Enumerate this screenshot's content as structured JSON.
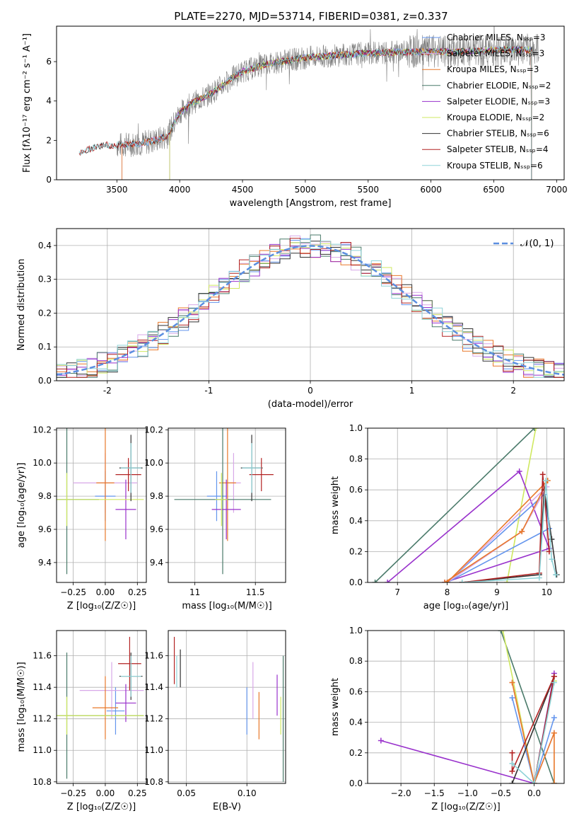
{
  "figure_title": "PLATE=2270, MJD=53714, FIBERID=0381, z=0.337",
  "colors": {
    "chabrier_miles": "#6495ed",
    "salpeter_miles": "#d8a8e8",
    "kroupa_miles": "#e8782a",
    "chabrier_elodie": "#4a7a6a",
    "salpeter_elodie": "#9932cc",
    "kroupa_elodie": "#cfe860",
    "chabrier_stelib": "#333333",
    "salpeter_stelib": "#b22222",
    "kroupa_stelib": "#8fd3d8",
    "data": "#808080",
    "normal_curve": "#5b8ee0",
    "grid": "#b0b0b0"
  },
  "chart_data": [
    {
      "id": "spectrum",
      "type": "line",
      "title": "PLATE=2270, MJD=53714, FIBERID=0381, z=0.337",
      "xlabel": "wavelength [Angstrom, rest frame]",
      "ylabel": "Flux [fλ10⁻¹⁷ erg cm⁻² s⁻¹ A⁻¹]",
      "xlim": [
        3020,
        7060
      ],
      "ylim": [
        0,
        7.8
      ],
      "xticks": [
        3500,
        4000,
        4500,
        5000,
        5500,
        6000,
        6500,
        7000
      ],
      "yticks": [
        0,
        2,
        4,
        6
      ],
      "grid": false,
      "legend_position": "right",
      "continuum": {
        "x": [
          3200,
          3300,
          3400,
          3500,
          3600,
          3700,
          3800,
          3900,
          4000,
          4100,
          4200,
          4300,
          4400,
          4500,
          4600,
          4700,
          4800,
          4900,
          5000,
          5200,
          5400,
          5600,
          5800,
          6000,
          6200,
          6400,
          6600,
          6800,
          6900
        ],
        "y": [
          1.4,
          1.6,
          1.75,
          1.75,
          1.8,
          1.85,
          2.0,
          2.2,
          3.4,
          3.9,
          4.2,
          4.6,
          5.1,
          5.5,
          5.7,
          5.9,
          6.0,
          6.1,
          6.2,
          6.3,
          6.4,
          6.45,
          6.5,
          6.5,
          6.5,
          6.55,
          6.6,
          6.6,
          6.6
        ]
      },
      "series": [
        {
          "name": "Chabrier MILES, Nₛₛₚ=3",
          "color_key": "chabrier_miles",
          "x_range": [
            3540,
            6800
          ]
        },
        {
          "name": "Salpeter MILES, Nₛₛₚ=3",
          "color_key": "salpeter_miles",
          "x_range": [
            3540,
            6800
          ]
        },
        {
          "name": "Kroupa MILES, Nₛₛₚ=3",
          "color_key": "kroupa_miles",
          "x_range": [
            3540,
            6800
          ]
        },
        {
          "name": "Chabrier ELODIE, Nₛₛₚ=2",
          "color_key": "chabrier_elodie",
          "x_range": [
            3920,
            6800
          ]
        },
        {
          "name": "Salpeter ELODIE, Nₛₛₚ=3",
          "color_key": "salpeter_elodie",
          "x_range": [
            3920,
            6800
          ]
        },
        {
          "name": "Kroupa ELODIE, Nₛₛₚ=2",
          "color_key": "kroupa_elodie",
          "x_range": [
            3920,
            6800
          ]
        },
        {
          "name": "Chabrier STELIB, Nₛₛₚ=6",
          "color_key": "chabrier_stelib",
          "x_range": [
            3200,
            6800
          ]
        },
        {
          "name": "Salpeter STELIB, Nₛₛₚ=4",
          "color_key": "salpeter_stelib",
          "x_range": [
            3200,
            6800
          ]
        },
        {
          "name": "Kroupa STELIB, Nₛₛₚ=6",
          "color_key": "kroupa_stelib",
          "x_range": [
            3200,
            6800
          ]
        }
      ],
      "data_series": {
        "color_key": "data",
        "x_range": [
          3500,
          6860
        ]
      }
    },
    {
      "id": "residuals",
      "type": "histogram",
      "xlabel": "(data-model)/error",
      "ylabel": "Normed distribution",
      "xlim": [
        -2.5,
        2.5
      ],
      "ylim": [
        0,
        0.45
      ],
      "xticks": [
        -2,
        -1,
        0,
        1,
        2
      ],
      "yticks": [
        0.0,
        0.1,
        0.2,
        0.3,
        0.4
      ],
      "grid": true,
      "bin_width": 0.1,
      "legend": "𝒩(0, 1)",
      "legend_position": "top-right"
    },
    {
      "id": "age_vs_Z",
      "type": "errorbar",
      "xlabel": "Z [log₁₀(Z/Z☉)]",
      "ylabel": "age  [log₁₀(age/yr)]",
      "xlim": [
        -0.38,
        0.32
      ],
      "ylim": [
        9.28,
        10.21
      ],
      "xticks": [
        -0.25,
        0.0,
        0.25
      ],
      "xticklabels": [
        "−0.25",
        "0.00",
        "0.25"
      ],
      "yticks": [
        9.4,
        9.6,
        9.8,
        10.0,
        10.2
      ],
      "grid": true,
      "points": [
        {
          "color_key": "chabrier_miles",
          "x": 0.0,
          "xerr": 0.08,
          "y": 9.8,
          "yerr": 0.15
        },
        {
          "color_key": "salpeter_miles",
          "x": 0.0,
          "xerr": 0.25,
          "y": 9.88,
          "yerr": 0.18
        },
        {
          "color_key": "kroupa_miles",
          "x": 0.0,
          "xerr": 0.07,
          "y": 9.88,
          "yerr": 0.35
        },
        {
          "color_key": "chabrier_elodie",
          "x": -0.3,
          "xerr": 0.25,
          "y": 9.78,
          "yerr": 0.45
        },
        {
          "color_key": "salpeter_elodie",
          "x": 0.16,
          "xerr": 0.08,
          "y": 9.72,
          "yerr": 0.18
        },
        {
          "color_key": "kroupa_elodie",
          "x": -0.3,
          "xerr": 0.6,
          "y": 9.78,
          "yerr": 0.16
        },
        {
          "color_key": "chabrier_stelib",
          "x": 0.2,
          "xerr": 0.09,
          "y": 9.97,
          "yerr": 0.2
        },
        {
          "color_key": "salpeter_stelib",
          "x": 0.18,
          "xerr": 0.1,
          "y": 9.93,
          "yerr": 0.1
        },
        {
          "color_key": "kroupa_stelib",
          "x": 0.2,
          "xerr": 0.08,
          "y": 9.97,
          "yerr": 0.15
        }
      ]
    },
    {
      "id": "age_vs_mass",
      "type": "errorbar",
      "xlabel": "mass [log₁₀(M/M☉)]",
      "xlim": [
        10.78,
        11.75
      ],
      "ylim": [
        9.28,
        10.21
      ],
      "xticks": [
        11.0,
        11.5
      ],
      "yticks": [
        9.4,
        9.6,
        9.8,
        10.0,
        10.2
      ],
      "grid": true,
      "points": [
        {
          "color_key": "chabrier_miles",
          "x": 11.18,
          "xerr": 0.08,
          "y": 9.8,
          "yerr": 0.15
        },
        {
          "color_key": "salpeter_miles",
          "x": 11.32,
          "xerr": 0.06,
          "y": 9.88,
          "yerr": 0.18
        },
        {
          "color_key": "kroupa_miles",
          "x": 11.27,
          "xerr": 0.07,
          "y": 9.88,
          "yerr": 0.35
        },
        {
          "color_key": "chabrier_elodie",
          "x": 11.23,
          "xerr": 0.4,
          "y": 9.78,
          "yerr": 0.45
        },
        {
          "color_key": "salpeter_elodie",
          "x": 11.26,
          "xerr": 0.12,
          "y": 9.72,
          "yerr": 0.18
        },
        {
          "color_key": "kroupa_elodie",
          "x": 11.22,
          "xerr": 0.05,
          "y": 9.78,
          "yerr": 0.16
        },
        {
          "color_key": "chabrier_stelib",
          "x": 11.47,
          "xerr": 0.09,
          "y": 9.97,
          "yerr": 0.2
        },
        {
          "color_key": "salpeter_stelib",
          "x": 11.55,
          "xerr": 0.1,
          "y": 9.93,
          "yerr": 0.1
        },
        {
          "color_key": "kroupa_stelib",
          "x": 11.47,
          "xerr": 0.08,
          "y": 9.97,
          "yerr": 0.15
        }
      ]
    },
    {
      "id": "massweight_vs_age",
      "type": "line",
      "xlabel": "age  [log₁₀(age/yr)]",
      "ylabel": "mass weight",
      "xlim": [
        6.4,
        10.35
      ],
      "ylim": [
        0,
        1
      ],
      "xticks": [
        7,
        8,
        9,
        10
      ],
      "yticks": [
        0.0,
        0.2,
        0.4,
        0.6,
        0.8,
        1.0
      ],
      "grid": true,
      "series": [
        {
          "color_key": "chabrier_elodie",
          "x": [
            6.55,
            9.75
          ],
          "y": [
            0.0,
            1.0
          ]
        },
        {
          "color_key": "kroupa_elodie",
          "x": [
            9.2,
            9.78
          ],
          "y": [
            0.0,
            1.0
          ]
        },
        {
          "color_key": "salpeter_elodie",
          "x": [
            6.8,
            9.45,
            10.05,
            7.95
          ],
          "y": [
            0.0,
            0.72,
            0.22,
            0.0
          ]
        },
        {
          "color_key": "chabrier_miles",
          "x": [
            8.0,
            9.95,
            10.05,
            8.0
          ],
          "y": [
            0.0,
            0.57,
            0.35,
            0.0
          ]
        },
        {
          "color_key": "salpeter_miles",
          "x": [
            8.0,
            9.5,
            10.0,
            8.0
          ],
          "y": [
            0.0,
            0.33,
            0.62,
            0.0
          ]
        },
        {
          "color_key": "kroupa_miles",
          "x": [
            7.95,
            9.5,
            10.02,
            8.0
          ],
          "y": [
            0.0,
            0.33,
            0.66,
            0.0
          ]
        },
        {
          "color_key": "chabrier_stelib",
          "x": [
            8.3,
            9.85,
            9.95,
            10.1,
            10.2
          ],
          "y": [
            0.0,
            0.05,
            0.6,
            0.28,
            0.05
          ]
        },
        {
          "color_key": "salpeter_stelib",
          "x": [
            8.3,
            9.85,
            9.92,
            10.05
          ],
          "y": [
            0.0,
            0.06,
            0.7,
            0.2
          ]
        },
        {
          "color_key": "kroupa_stelib",
          "x": [
            8.3,
            9.85,
            9.98,
            10.1,
            10.18
          ],
          "y": [
            0.0,
            0.03,
            0.66,
            0.15,
            0.05
          ]
        }
      ]
    },
    {
      "id": "mass_vs_Z",
      "type": "errorbar",
      "xlabel": "Z [log₁₀(Z/Z☉)]",
      "ylabel": "mass [log₁₀(M/M☉)]",
      "xlim": [
        -0.38,
        0.32
      ],
      "ylim": [
        10.79,
        11.76
      ],
      "xticks": [
        -0.25,
        0.0,
        0.25
      ],
      "xticklabels": [
        "−0.25",
        "0.00",
        "0.25"
      ],
      "yticks": [
        10.8,
        11.0,
        11.2,
        11.4,
        11.6
      ],
      "grid": true,
      "points": [
        {
          "color_key": "chabrier_miles",
          "x": 0.08,
          "xerr": 0.07,
          "y": 11.25,
          "yerr": 0.15
        },
        {
          "color_key": "salpeter_miles",
          "x": 0.05,
          "xerr": 0.25,
          "y": 11.38,
          "yerr": 0.18
        },
        {
          "color_key": "kroupa_miles",
          "x": 0.0,
          "xerr": 0.1,
          "y": 11.27,
          "yerr": 0.2
        },
        {
          "color_key": "chabrier_elodie",
          "x": -0.3,
          "xerr": 0.6,
          "y": 11.22,
          "yerr": 0.4
        },
        {
          "color_key": "salpeter_elodie",
          "x": 0.16,
          "xerr": 0.08,
          "y": 11.3,
          "yerr": 0.12
        },
        {
          "color_key": "kroupa_elodie",
          "x": -0.3,
          "xerr": 0.6,
          "y": 11.22,
          "yerr": 0.12
        },
        {
          "color_key": "chabrier_stelib",
          "x": 0.2,
          "xerr": 0.09,
          "y": 11.47,
          "yerr": 0.15
        },
        {
          "color_key": "salpeter_stelib",
          "x": 0.19,
          "xerr": 0.09,
          "y": 11.55,
          "yerr": 0.17
        },
        {
          "color_key": "kroupa_stelib",
          "x": 0.2,
          "xerr": 0.08,
          "y": 11.47,
          "yerr": 0.13
        }
      ]
    },
    {
      "id": "mass_vs_ebv",
      "type": "errorbar",
      "xlabel": "E(B-V)",
      "xlim": [
        0.035,
        0.132
      ],
      "ylim": [
        10.79,
        11.76
      ],
      "xticks": [
        0.05,
        0.1
      ],
      "xticklabels": [
        "0.05",
        "0.10"
      ],
      "yticks": [
        10.8,
        11.0,
        11.2,
        11.4,
        11.6
      ],
      "grid": true,
      "points": [
        {
          "color_key": "chabrier_miles",
          "x": 0.1,
          "y": 11.25,
          "yerr": 0.15
        },
        {
          "color_key": "salpeter_miles",
          "x": 0.105,
          "y": 11.38,
          "yerr": 0.18
        },
        {
          "color_key": "kroupa_miles",
          "x": 0.11,
          "y": 11.22,
          "yerr": 0.15
        },
        {
          "color_key": "chabrier_elodie",
          "x": 0.13,
          "y": 11.2,
          "yerr": 0.4
        },
        {
          "color_key": "salpeter_elodie",
          "x": 0.125,
          "y": 11.35,
          "yerr": 0.13
        },
        {
          "color_key": "kroupa_elodie",
          "x": 0.128,
          "y": 11.22,
          "yerr": 0.12
        },
        {
          "color_key": "chabrier_stelib",
          "x": 0.045,
          "y": 11.52,
          "yerr": 0.12
        },
        {
          "color_key": "salpeter_stelib",
          "x": 0.04,
          "y": 11.57,
          "yerr": 0.15
        },
        {
          "color_key": "kroupa_stelib",
          "x": 0.042,
          "y": 11.5,
          "yerr": 0.1
        }
      ]
    },
    {
      "id": "massweight_vs_Z",
      "type": "line",
      "xlabel": "Z [log₁₀(Z/Z☉)]",
      "ylabel": "mass weight",
      "xlim": [
        -2.5,
        0.45
      ],
      "ylim": [
        0,
        1
      ],
      "xticks": [
        -2.0,
        -1.5,
        -1.0,
        -0.5,
        0.0
      ],
      "xticklabels": [
        "−2.0",
        "−1.5",
        "−1.0",
        "−0.5",
        "0.0"
      ],
      "yticks": [
        0.0,
        0.2,
        0.4,
        0.6,
        0.8,
        1.0
      ],
      "grid": true,
      "series": [
        {
          "color_key": "chabrier_elodie",
          "x": [
            -0.5,
            0.3
          ],
          "y": [
            1.0,
            0.0
          ]
        },
        {
          "color_key": "kroupa_elodie",
          "x": [
            -0.47,
            0.0,
            0.3
          ],
          "y": [
            1.0,
            0.0,
            0.67
          ]
        },
        {
          "color_key": "salpeter_elodie",
          "x": [
            -2.3,
            0.0,
            0.3
          ],
          "y": [
            0.28,
            0.0,
            0.72
          ]
        },
        {
          "color_key": "chabrier_miles",
          "x": [
            -0.33,
            0.0,
            0.3
          ],
          "y": [
            0.56,
            0.0,
            0.43
          ]
        },
        {
          "color_key": "salpeter_miles",
          "x": [
            -0.33,
            0.0,
            0.3
          ],
          "y": [
            0.66,
            0.0,
            0.33
          ]
        },
        {
          "color_key": "kroupa_miles",
          "x": [
            -0.33,
            0.0,
            0.3,
            0.3
          ],
          "y": [
            0.66,
            0.0,
            0.33,
            0.0
          ]
        },
        {
          "color_key": "chabrier_stelib",
          "x": [
            -0.33,
            0.3,
            0.0
          ],
          "y": [
            0.0,
            0.7,
            0.0
          ]
        },
        {
          "color_key": "salpeter_stelib",
          "x": [
            -0.33,
            -0.33,
            0.3,
            0.0
          ],
          "y": [
            0.2,
            0.08,
            0.7,
            0.0
          ]
        },
        {
          "color_key": "kroupa_stelib",
          "x": [
            -0.33,
            0.0,
            0.3
          ],
          "y": [
            0.13,
            0.0,
            0.66
          ]
        }
      ]
    }
  ]
}
